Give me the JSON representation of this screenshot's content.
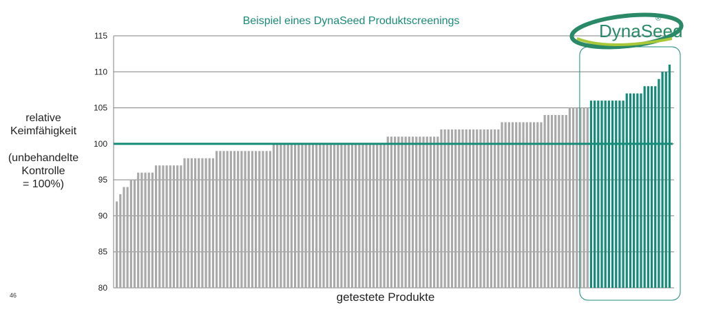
{
  "title": "Beispiel eines DynaSeed Produktscreenings",
  "page_number": "46",
  "logo": {
    "text": "DynaSeed",
    "registered": "®"
  },
  "colors": {
    "grey": "#a9a9a9",
    "green": "#148a78",
    "title": "#1a8a78",
    "logo_green": "#2a8a68",
    "logo_lime": "#a8c83a"
  },
  "chart_data": {
    "type": "bar",
    "title": "Beispiel eines DynaSeed Produktscreenings",
    "xlabel": "getestete Produkte",
    "ylabel_lines": [
      "relative",
      "Keimfähigkeit",
      "",
      "(unbehandelte",
      "Kontrolle",
      "= 100%)"
    ],
    "ylim": [
      80,
      115
    ],
    "yticks": [
      80,
      85,
      90,
      95,
      100,
      105,
      110,
      115
    ],
    "reference_line": 100,
    "grid": "horizontal",
    "series": [
      {
        "color": "#a9a9a9",
        "values": [
          92,
          93,
          94,
          94,
          95,
          95,
          96,
          96,
          96,
          96,
          96,
          97,
          97,
          97,
          97,
          97,
          97,
          97,
          97,
          98,
          98,
          98,
          98,
          98,
          98,
          98,
          98,
          98,
          99,
          99,
          99,
          99,
          99,
          99,
          99,
          99,
          99,
          99,
          99,
          99,
          99,
          99,
          99,
          99,
          100,
          100,
          100,
          100,
          100,
          100,
          100,
          100,
          100,
          100,
          100,
          100,
          100,
          100,
          100,
          100,
          100,
          100,
          100,
          100,
          100,
          100,
          100,
          100,
          100,
          100,
          100,
          100,
          100,
          100,
          100,
          100,
          101,
          101,
          101,
          101,
          101,
          101,
          101,
          101,
          101,
          101,
          101,
          101,
          101,
          101,
          101,
          102,
          102,
          102,
          102,
          102,
          102,
          102,
          102,
          102,
          102,
          102,
          102,
          102,
          102,
          102,
          102,
          102,
          103,
          103,
          103,
          103,
          103,
          103,
          103,
          103,
          103,
          103,
          103,
          103,
          104,
          104,
          104,
          104,
          104,
          104,
          104,
          105,
          105,
          105,
          105,
          105,
          105
        ]
      },
      {
        "color": "#148a78",
        "values": [
          106,
          106,
          106,
          106,
          106,
          106,
          106,
          106,
          106,
          106,
          107,
          107,
          107,
          107,
          107,
          108,
          108,
          108,
          108,
          109,
          110,
          110,
          111
        ]
      }
    ]
  }
}
